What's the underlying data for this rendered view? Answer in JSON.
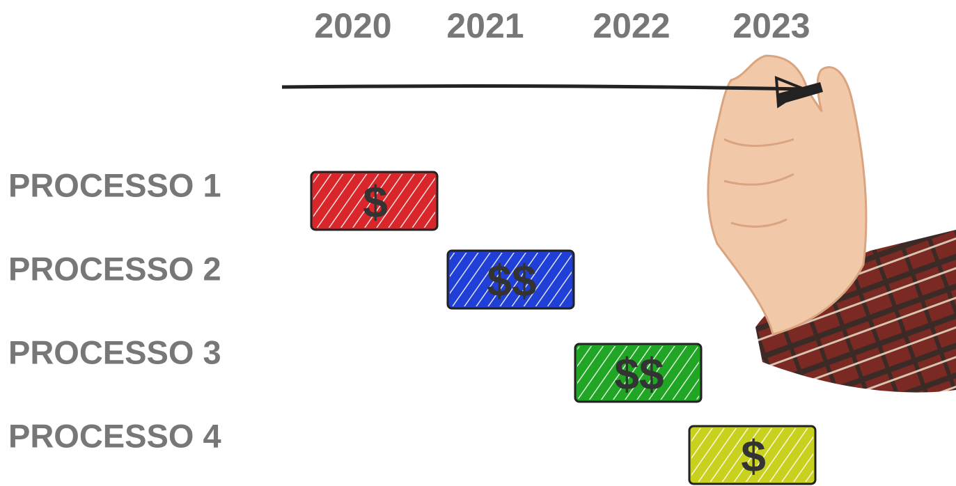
{
  "timeline": {
    "years": [
      "2020",
      "2021",
      "2022",
      "2023"
    ]
  },
  "processes": [
    {
      "label": "PROCESSO 1",
      "cost": "$",
      "color": "#d9262a"
    },
    {
      "label": "PROCESSO 2",
      "cost": "$$",
      "color": "#1f3fd6"
    },
    {
      "label": "PROCESSO 3",
      "cost": "$$",
      "color": "#20a524"
    },
    {
      "label": "PROCESSO 4",
      "cost": "$",
      "color": "#c8d21e"
    }
  ]
}
